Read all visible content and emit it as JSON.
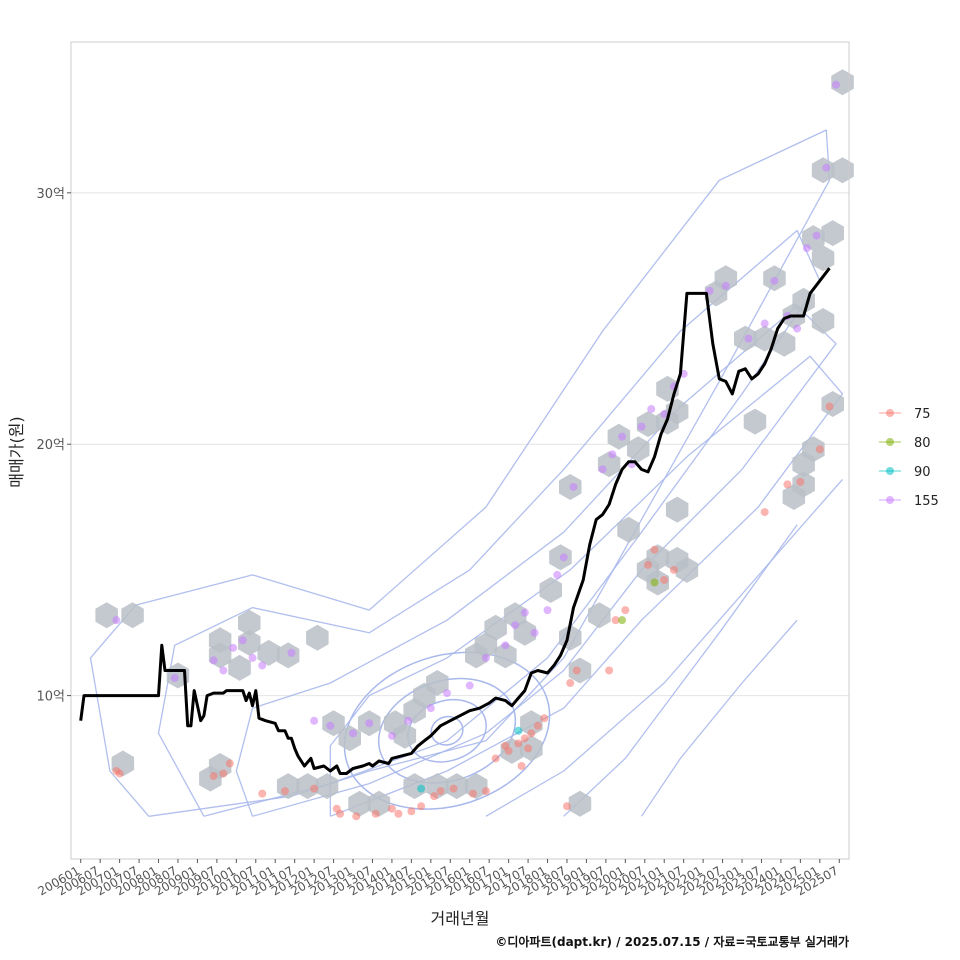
{
  "chart_data": {
    "type": "scatter",
    "xlabel": "거래년월",
    "ylabel": "매매가(원)",
    "caption": "©디아파트(dapt.kr) / 2025.07.15 / 자료=국토교통부 실거래가",
    "ylim": [
      3.5,
      36
    ],
    "y_ticks": [
      {
        "value": 10,
        "label": "10억"
      },
      {
        "value": 20,
        "label": "20억"
      },
      {
        "value": 30,
        "label": "30억"
      }
    ],
    "x_domain": [
      "2005-10",
      "2025-10"
    ],
    "x_ticks": [
      "200601",
      "200607",
      "200701",
      "200707",
      "200801",
      "200807",
      "200901",
      "200907",
      "201001",
      "201007",
      "201101",
      "201107",
      "201201",
      "201207",
      "201301",
      "201307",
      "201401",
      "201407",
      "201501",
      "201507",
      "201601",
      "201607",
      "201701",
      "201707",
      "201801",
      "201807",
      "201901",
      "201907",
      "202001",
      "202007",
      "202101",
      "202107",
      "202201",
      "202207",
      "202301",
      "202307",
      "202401",
      "202407",
      "202501",
      "202507"
    ],
    "legend": {
      "position": "right",
      "items": [
        {
          "label": "75",
          "color": "#F8766D"
        },
        {
          "label": "80",
          "color": "#7CAE00"
        },
        {
          "label": "90",
          "color": "#00BFC4"
        },
        {
          "label": "155",
          "color": "#C77CFF"
        }
      ]
    },
    "colors": {
      "hex": "#b9c0c7",
      "contour": "#a9b8ec",
      "median_line": "#000000",
      "grid": "#e4e4e4",
      "panel_border": "#cccccc"
    },
    "series": [
      {
        "name": "75",
        "points": [
          [
            "2006-12",
            7.0
          ],
          [
            "2007-01",
            6.9
          ],
          [
            "2009-06",
            6.8
          ],
          [
            "2009-09",
            6.9
          ],
          [
            "2009-11",
            7.3
          ],
          [
            "2010-09",
            6.1
          ],
          [
            "2011-04",
            6.2
          ],
          [
            "2012-01",
            6.3
          ],
          [
            "2012-08",
            5.5
          ],
          [
            "2012-09",
            5.3
          ],
          [
            "2013-02",
            5.2
          ],
          [
            "2013-08",
            5.3
          ],
          [
            "2014-01",
            5.5
          ],
          [
            "2014-03",
            5.3
          ],
          [
            "2014-07",
            5.4
          ],
          [
            "2014-10",
            5.6
          ],
          [
            "2015-02",
            6.0
          ],
          [
            "2015-04",
            6.2
          ],
          [
            "2015-08",
            6.3
          ],
          [
            "2016-02",
            6.1
          ],
          [
            "2016-06",
            6.2
          ],
          [
            "2016-09",
            7.5
          ],
          [
            "2016-12",
            8.0
          ],
          [
            "2017-01",
            7.8
          ],
          [
            "2017-04",
            8.1
          ],
          [
            "2017-06",
            8.3
          ],
          [
            "2017-08",
            8.5
          ],
          [
            "2017-10",
            8.8
          ],
          [
            "2017-12",
            9.1
          ],
          [
            "2017-05",
            7.2
          ],
          [
            "2017-07",
            7.9
          ],
          [
            "2018-08",
            10.5
          ],
          [
            "2018-10",
            11.0
          ],
          [
            "2018-07",
            5.6
          ],
          [
            "2019-08",
            11.0
          ],
          [
            "2019-10",
            13.0
          ],
          [
            "2020-01",
            13.4
          ],
          [
            "2020-08",
            15.2
          ],
          [
            "2020-10",
            15.8
          ],
          [
            "2021-01",
            14.6
          ],
          [
            "2021-04",
            15.0
          ],
          [
            "2023-08",
            17.3
          ],
          [
            "2024-03",
            18.4
          ],
          [
            "2024-07",
            18.5
          ],
          [
            "2025-01",
            19.8
          ],
          [
            "2025-04",
            21.5
          ]
        ]
      },
      {
        "name": "80",
        "points": [
          [
            "2019-12",
            13.0
          ],
          [
            "2020-10",
            14.5
          ]
        ]
      },
      {
        "name": "90",
        "points": [
          [
            "2014-10",
            6.3
          ],
          [
            "2017-04",
            8.6
          ]
        ]
      },
      {
        "name": "155",
        "points": [
          [
            "2006-12",
            13.0
          ],
          [
            "2008-06",
            10.7
          ],
          [
            "2009-06",
            11.4
          ],
          [
            "2009-09",
            11.0
          ],
          [
            "2009-12",
            11.9
          ],
          [
            "2010-03",
            12.2
          ],
          [
            "2010-06",
            11.5
          ],
          [
            "2010-09",
            11.2
          ],
          [
            "2011-06",
            11.7
          ],
          [
            "2012-01",
            9.0
          ],
          [
            "2012-06",
            8.8
          ],
          [
            "2013-01",
            8.5
          ],
          [
            "2013-06",
            8.9
          ],
          [
            "2014-01",
            8.4
          ],
          [
            "2014-06",
            9.0
          ],
          [
            "2015-01",
            9.5
          ],
          [
            "2015-06",
            10.1
          ],
          [
            "2016-01",
            10.4
          ],
          [
            "2016-06",
            11.5
          ],
          [
            "2016-12",
            12.0
          ],
          [
            "2017-03",
            12.8
          ],
          [
            "2017-06",
            13.3
          ],
          [
            "2017-09",
            12.5
          ],
          [
            "2018-01",
            13.4
          ],
          [
            "2018-04",
            14.8
          ],
          [
            "2018-06",
            15.5
          ],
          [
            "2018-09",
            18.3
          ],
          [
            "2019-06",
            19.0
          ],
          [
            "2019-09",
            19.6
          ],
          [
            "2019-12",
            20.3
          ],
          [
            "2020-03",
            19.2
          ],
          [
            "2020-06",
            20.7
          ],
          [
            "2020-09",
            21.4
          ],
          [
            "2021-01",
            21.2
          ],
          [
            "2021-04",
            22.3
          ],
          [
            "2021-07",
            22.8
          ],
          [
            "2022-03",
            26.1
          ],
          [
            "2022-08",
            26.3
          ],
          [
            "2023-03",
            24.2
          ],
          [
            "2023-08",
            24.8
          ],
          [
            "2023-11",
            26.5
          ],
          [
            "2024-03",
            25.1
          ],
          [
            "2024-06",
            24.6
          ],
          [
            "2024-09",
            27.8
          ],
          [
            "2024-12",
            28.3
          ],
          [
            "2025-03",
            31.0
          ],
          [
            "2025-06",
            34.3
          ]
        ]
      }
    ],
    "hexbins": [
      [
        "2006-09",
        13.2
      ],
      [
        "2007-05",
        13.2
      ],
      [
        "2007-02",
        7.3
      ],
      [
        "2008-07",
        10.8
      ],
      [
        "2009-05",
        6.7
      ],
      [
        "2009-08",
        7.2
      ],
      [
        "2009-08",
        11.6
      ],
      [
        "2009-08",
        12.2
      ],
      [
        "2010-02",
        11.1
      ],
      [
        "2010-05",
        12.1
      ],
      [
        "2010-05",
        12.9
      ],
      [
        "2010-11",
        11.7
      ],
      [
        "2011-05",
        11.6
      ],
      [
        "2011-05",
        6.4
      ],
      [
        "2011-11",
        6.4
      ],
      [
        "2012-05",
        6.4
      ],
      [
        "2012-02",
        12.3
      ],
      [
        "2012-07",
        8.9
      ],
      [
        "2012-12",
        8.3
      ],
      [
        "2013-06",
        8.9
      ],
      [
        "2013-03",
        5.7
      ],
      [
        "2013-09",
        5.7
      ],
      [
        "2014-02",
        8.9
      ],
      [
        "2014-05",
        8.4
      ],
      [
        "2014-08",
        9.4
      ],
      [
        "2014-11",
        10.0
      ],
      [
        "2014-08",
        6.4
      ],
      [
        "2015-03",
        6.4
      ],
      [
        "2015-03",
        10.5
      ],
      [
        "2015-09",
        6.4
      ],
      [
        "2016-03",
        6.4
      ],
      [
        "2016-03",
        11.6
      ],
      [
        "2016-09",
        12.7
      ],
      [
        "2016-06",
        12.0
      ],
      [
        "2016-12",
        11.6
      ],
      [
        "2017-03",
        13.2
      ],
      [
        "2017-06",
        12.5
      ],
      [
        "2017-02",
        7.8
      ],
      [
        "2017-08",
        7.9
      ],
      [
        "2017-08",
        8.9
      ],
      [
        "2018-02",
        14.2
      ],
      [
        "2018-05",
        15.5
      ],
      [
        "2018-08",
        12.3
      ],
      [
        "2018-08",
        18.3
      ],
      [
        "2018-11",
        11.0
      ],
      [
        "2018-11",
        5.7
      ],
      [
        "2019-05",
        13.2
      ],
      [
        "2019-08",
        19.2
      ],
      [
        "2019-11",
        20.3
      ],
      [
        "2020-02",
        16.6
      ],
      [
        "2020-05",
        19.8
      ],
      [
        "2020-08",
        20.8
      ],
      [
        "2020-08",
        15.0
      ],
      [
        "2020-11",
        14.5
      ],
      [
        "2020-11",
        15.5
      ],
      [
        "2021-02",
        20.9
      ],
      [
        "2021-02",
        22.2
      ],
      [
        "2021-05",
        15.4
      ],
      [
        "2021-05",
        17.4
      ],
      [
        "2021-05",
        21.3
      ],
      [
        "2021-08",
        15.0
      ],
      [
        "2022-05",
        26.0
      ],
      [
        "2022-08",
        26.6
      ],
      [
        "2023-02",
        24.2
      ],
      [
        "2023-05",
        20.9
      ],
      [
        "2023-08",
        24.2
      ],
      [
        "2023-11",
        26.6
      ],
      [
        "2024-02",
        24.0
      ],
      [
        "2024-05",
        25.1
      ],
      [
        "2024-05",
        17.9
      ],
      [
        "2024-08",
        18.4
      ],
      [
        "2024-08",
        25.7
      ],
      [
        "2024-08",
        19.2
      ],
      [
        "2024-11",
        28.2
      ],
      [
        "2024-11",
        19.8
      ],
      [
        "2025-02",
        27.4
      ],
      [
        "2025-02",
        24.9
      ],
      [
        "2025-02",
        30.9
      ],
      [
        "2025-05",
        28.4
      ],
      [
        "2025-05",
        21.6
      ],
      [
        "2025-08",
        30.9
      ],
      [
        "2025-08",
        34.4
      ]
    ],
    "median_line": [
      [
        "2006-01",
        9.0
      ],
      [
        "2006-02",
        10.0
      ],
      [
        "2006-06",
        10.0
      ],
      [
        "2007-01",
        10.0
      ],
      [
        "2007-06",
        10.0
      ],
      [
        "2008-01",
        10.0
      ],
      [
        "2008-02",
        12.0
      ],
      [
        "2008-03",
        11.0
      ],
      [
        "2008-06",
        11.0
      ],
      [
        "2008-09",
        11.0
      ],
      [
        "2008-10",
        8.8
      ],
      [
        "2008-11",
        8.8
      ],
      [
        "2008-12",
        10.2
      ],
      [
        "2009-02",
        9.0
      ],
      [
        "2009-03",
        9.2
      ],
      [
        "2009-04",
        10.0
      ],
      [
        "2009-06",
        10.1
      ],
      [
        "2009-09",
        10.1
      ],
      [
        "2009-10",
        10.2
      ],
      [
        "2010-01",
        10.2
      ],
      [
        "2010-03",
        10.2
      ],
      [
        "2010-04",
        9.8
      ],
      [
        "2010-05",
        10.1
      ],
      [
        "2010-06",
        9.6
      ],
      [
        "2010-07",
        10.2
      ],
      [
        "2010-08",
        9.1
      ],
      [
        "2010-10",
        9.0
      ],
      [
        "2011-01",
        8.9
      ],
      [
        "2011-02",
        8.6
      ],
      [
        "2011-04",
        8.6
      ],
      [
        "2011-05",
        8.3
      ],
      [
        "2011-06",
        8.3
      ],
      [
        "2011-07",
        7.9
      ],
      [
        "2011-08",
        7.6
      ],
      [
        "2011-10",
        7.2
      ],
      [
        "2011-12",
        7.5
      ],
      [
        "2012-01",
        7.1
      ],
      [
        "2012-04",
        7.2
      ],
      [
        "2012-06",
        7.0
      ],
      [
        "2012-08",
        7.2
      ],
      [
        "2012-09",
        6.9
      ],
      [
        "2012-11",
        6.9
      ],
      [
        "2013-01",
        7.1
      ],
      [
        "2013-04",
        7.2
      ],
      [
        "2013-06",
        7.3
      ],
      [
        "2013-07",
        7.2
      ],
      [
        "2013-09",
        7.4
      ],
      [
        "2013-12",
        7.3
      ],
      [
        "2014-01",
        7.5
      ],
      [
        "2014-04",
        7.6
      ],
      [
        "2014-07",
        7.7
      ],
      [
        "2014-09",
        8.0
      ],
      [
        "2014-11",
        8.2
      ],
      [
        "2015-01",
        8.4
      ],
      [
        "2015-04",
        8.8
      ],
      [
        "2015-07",
        9.0
      ],
      [
        "2015-10",
        9.2
      ],
      [
        "2016-01",
        9.4
      ],
      [
        "2016-04",
        9.5
      ],
      [
        "2016-07",
        9.7
      ],
      [
        "2016-09",
        9.9
      ],
      [
        "2016-12",
        9.8
      ],
      [
        "2017-02",
        9.6
      ],
      [
        "2017-04",
        9.9
      ],
      [
        "2017-06",
        10.2
      ],
      [
        "2017-08",
        10.9
      ],
      [
        "2017-10",
        11.0
      ],
      [
        "2018-01",
        10.9
      ],
      [
        "2018-03",
        11.2
      ],
      [
        "2018-05",
        11.6
      ],
      [
        "2018-07",
        12.2
      ],
      [
        "2018-09",
        13.5
      ],
      [
        "2018-12",
        14.6
      ],
      [
        "2019-02",
        16.0
      ],
      [
        "2019-04",
        17.0
      ],
      [
        "2019-06",
        17.2
      ],
      [
        "2019-08",
        17.6
      ],
      [
        "2019-10",
        18.4
      ],
      [
        "2019-12",
        19.0
      ],
      [
        "2020-02",
        19.3
      ],
      [
        "2020-04",
        19.3
      ],
      [
        "2020-06",
        19.0
      ],
      [
        "2020-08",
        18.9
      ],
      [
        "2020-10",
        19.5
      ],
      [
        "2020-12",
        20.4
      ],
      [
        "2021-02",
        21.0
      ],
      [
        "2021-04",
        22.0
      ],
      [
        "2021-06",
        22.8
      ],
      [
        "2021-08",
        26.0
      ],
      [
        "2021-10",
        26.0
      ],
      [
        "2022-02",
        26.0
      ],
      [
        "2022-04",
        24.0
      ],
      [
        "2022-06",
        22.6
      ],
      [
        "2022-08",
        22.5
      ],
      [
        "2022-10",
        22.0
      ],
      [
        "2022-12",
        22.9
      ],
      [
        "2023-02",
        23.0
      ],
      [
        "2023-04",
        22.6
      ],
      [
        "2023-06",
        22.8
      ],
      [
        "2023-08",
        23.2
      ],
      [
        "2023-10",
        23.8
      ],
      [
        "2023-12",
        24.6
      ],
      [
        "2024-02",
        25.0
      ],
      [
        "2024-04",
        25.1
      ],
      [
        "2024-08",
        25.1
      ],
      [
        "2024-10",
        26.0
      ],
      [
        "2025-01",
        26.5
      ],
      [
        "2025-04",
        27.0
      ]
    ]
  }
}
